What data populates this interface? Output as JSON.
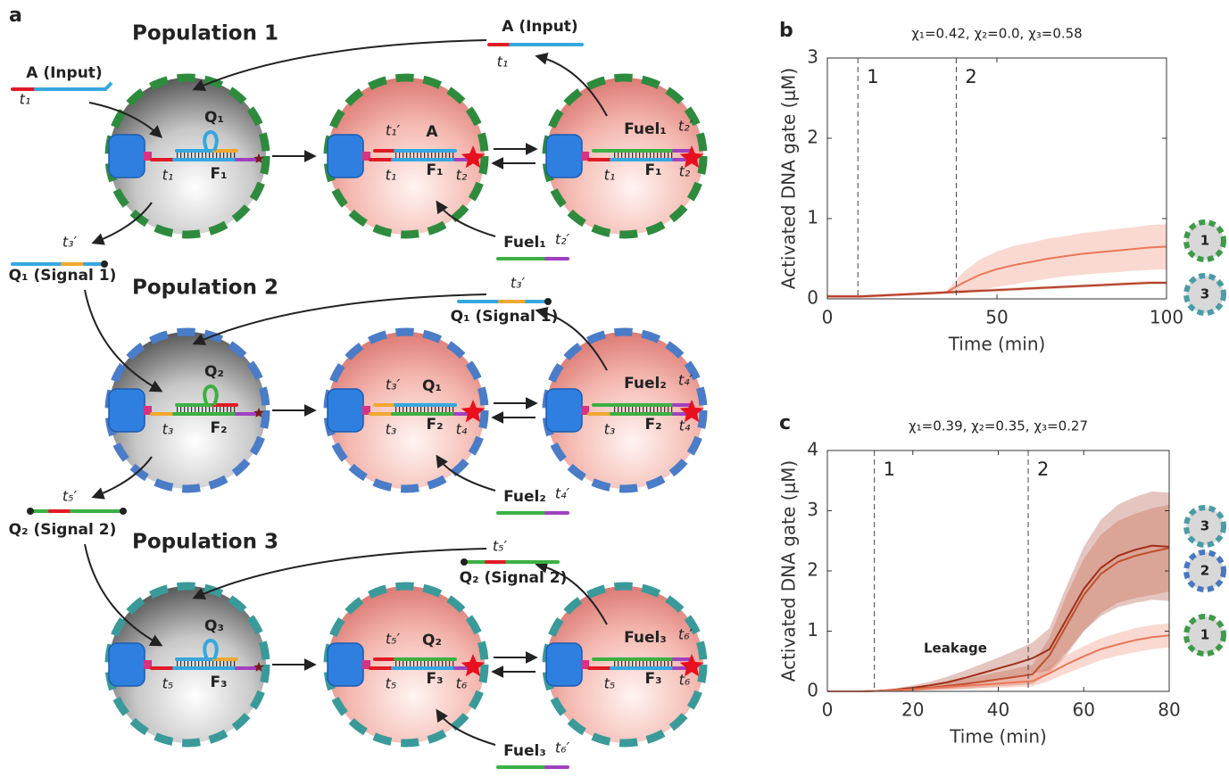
{
  "panel_a": {
    "label": "a",
    "rows": [
      {
        "title": "Population 1",
        "input": "A (Input)",
        "input_domain": "t₁",
        "gate": "Q₁",
        "gate_strand": "F₁",
        "gate_toehold": "t₁",
        "bound_toehold": "t₁′",
        "bound": "A",
        "active_strand": "F₁",
        "active_toehold": "t₁",
        "active_end": "t₂",
        "fuel_bound": "Fuel₁",
        "fuel_bound_end": "t₂′",
        "fuel_strand": "F₁",
        "fuel_toehold": "t₁",
        "fuel_end": "t₂",
        "released": "A (Input)",
        "released_domain": "t₁",
        "fuel": "Fuel₁",
        "fuel_domain": "t₂′",
        "output": "Q₁ (Signal 1)",
        "output_domain": "t₃′"
      },
      {
        "title": "Population 2",
        "gate": "Q₂",
        "gate_strand": "F₂",
        "gate_toehold": "t₃",
        "bound_toehold": "t₃′",
        "bound": "Q₁",
        "active_strand": "F₂",
        "active_toehold": "t₃",
        "active_end": "t₄",
        "fuel_bound": "Fuel₂",
        "fuel_bound_end": "t₄′",
        "fuel_strand": "F₂",
        "fuel_toehold": "t₃",
        "fuel_end": "t₄",
        "released": "Q₁ (Signal 1)",
        "released_domain": "t₃′",
        "fuel": "Fuel₂",
        "fuel_domain": "t₄′",
        "output": "Q₂ (Signal 2)",
        "output_domain": "t₅′"
      },
      {
        "title": "Population 3",
        "gate": "Q₃",
        "gate_strand": "F₃",
        "gate_toehold": "t₅",
        "bound_toehold": "t₅′",
        "bound": "Q₂",
        "active_strand": "F₃",
        "active_toehold": "t₅",
        "active_end": "t₆",
        "fuel_bound": "Fuel₃",
        "fuel_bound_end": "t₆′",
        "fuel_strand": "F₃",
        "fuel_toehold": "t₅",
        "fuel_end": "t₆",
        "released": "Q₂ (Signal 2)",
        "released_domain": "t₅′",
        "fuel": "Fuel₃",
        "fuel_domain": "t₆′"
      }
    ]
  },
  "chart_data": [
    {
      "type": "line",
      "panel_label": "b",
      "title": "χ₁=0.42, χ₂=0.0, χ₃=0.58",
      "xlabel": "Time (min)",
      "ylabel": "Activated DNA gate (μM)",
      "xlim": [
        0,
        100
      ],
      "ylim": [
        0,
        3
      ],
      "xticks": [
        0,
        50,
        100
      ],
      "yticks": [
        0,
        1,
        2,
        3
      ],
      "markers": [
        {
          "x": 9,
          "label": "1"
        },
        {
          "x": 38,
          "label": "2"
        }
      ],
      "x": [
        0,
        5,
        10,
        15,
        20,
        25,
        30,
        35,
        40,
        45,
        50,
        55,
        60,
        65,
        70,
        75,
        80,
        85,
        90,
        95,
        100
      ],
      "series": [
        {
          "name": "1",
          "color": "#e8785a",
          "ring_color": "#3f9a4a",
          "values": [
            0.03,
            0.03,
            0.03,
            0.04,
            0.05,
            0.06,
            0.07,
            0.08,
            0.2,
            0.3,
            0.37,
            0.42,
            0.46,
            0.5,
            0.53,
            0.56,
            0.58,
            0.6,
            0.62,
            0.64,
            0.65
          ],
          "band": [
            0.01,
            0.01,
            0.01,
            0.01,
            0.01,
            0.01,
            0.01,
            0.01,
            0.13,
            0.19,
            0.22,
            0.24,
            0.24,
            0.25,
            0.25,
            0.26,
            0.26,
            0.27,
            0.27,
            0.28,
            0.28
          ]
        },
        {
          "name": "3",
          "color": "#b5402a",
          "ring_color": "#4a9ca6",
          "values": [
            0.03,
            0.03,
            0.03,
            0.04,
            0.05,
            0.06,
            0.07,
            0.08,
            0.09,
            0.1,
            0.11,
            0.12,
            0.13,
            0.14,
            0.15,
            0.16,
            0.17,
            0.18,
            0.19,
            0.2,
            0.2
          ],
          "band": [
            0.02,
            0.02,
            0.02,
            0.02,
            0.02,
            0.02,
            0.02,
            0.02,
            0.02,
            0.02,
            0.02,
            0.02,
            0.02,
            0.02,
            0.02,
            0.02,
            0.02,
            0.02,
            0.02,
            0.02,
            0.02
          ]
        }
      ]
    },
    {
      "type": "line",
      "panel_label": "c",
      "title": "χ₁=0.39, χ₂=0.35, χ₃=0.27",
      "xlabel": "Time (min)",
      "ylabel": "Activated DNA gate (μM)",
      "xlim": [
        0,
        80
      ],
      "ylim": [
        0,
        4
      ],
      "xticks": [
        0,
        20,
        40,
        60,
        80
      ],
      "yticks": [
        0,
        1,
        2,
        3,
        4
      ],
      "markers": [
        {
          "x": 11,
          "label": "1"
        },
        {
          "x": 47,
          "label": "2"
        }
      ],
      "annotation": "Leakage",
      "x": [
        0,
        4,
        8,
        12,
        16,
        20,
        24,
        28,
        32,
        36,
        40,
        44,
        48,
        52,
        56,
        60,
        64,
        68,
        72,
        76,
        80
      ],
      "series": [
        {
          "name": "3",
          "color": "#a0301a",
          "ring_color": "#4a9ca6",
          "values": [
            0,
            0,
            0,
            0.01,
            0.03,
            0.06,
            0.1,
            0.15,
            0.22,
            0.3,
            0.38,
            0.46,
            0.55,
            0.7,
            1.2,
            1.7,
            2.05,
            2.25,
            2.35,
            2.42,
            2.4
          ],
          "band": [
            0,
            0,
            0,
            0.01,
            0.02,
            0.04,
            0.06,
            0.09,
            0.12,
            0.15,
            0.18,
            0.22,
            0.26,
            0.35,
            0.55,
            0.7,
            0.8,
            0.85,
            0.88,
            0.9,
            0.9
          ]
        },
        {
          "name": "2",
          "color": "#c0502e",
          "ring_color": "#4a78c0",
          "values": [
            0,
            0,
            0,
            0.01,
            0.02,
            0.04,
            0.06,
            0.09,
            0.12,
            0.16,
            0.2,
            0.24,
            0.28,
            0.6,
            1.1,
            1.6,
            1.95,
            2.15,
            2.25,
            2.32,
            2.38
          ],
          "band": [
            0,
            0,
            0,
            0.01,
            0.02,
            0.03,
            0.04,
            0.06,
            0.08,
            0.1,
            0.12,
            0.14,
            0.16,
            0.3,
            0.5,
            0.6,
            0.65,
            0.68,
            0.7,
            0.72,
            0.72
          ]
        },
        {
          "name": "1",
          "color": "#e8785a",
          "ring_color": "#3f9a4a",
          "values": [
            0,
            0,
            0,
            0.01,
            0.02,
            0.03,
            0.05,
            0.07,
            0.09,
            0.11,
            0.13,
            0.15,
            0.17,
            0.3,
            0.45,
            0.58,
            0.7,
            0.78,
            0.85,
            0.9,
            0.93
          ],
          "band": [
            0,
            0,
            0,
            0.01,
            0.01,
            0.02,
            0.03,
            0.04,
            0.05,
            0.06,
            0.07,
            0.08,
            0.09,
            0.12,
            0.15,
            0.17,
            0.18,
            0.19,
            0.2,
            0.2,
            0.2
          ]
        }
      ]
    }
  ]
}
